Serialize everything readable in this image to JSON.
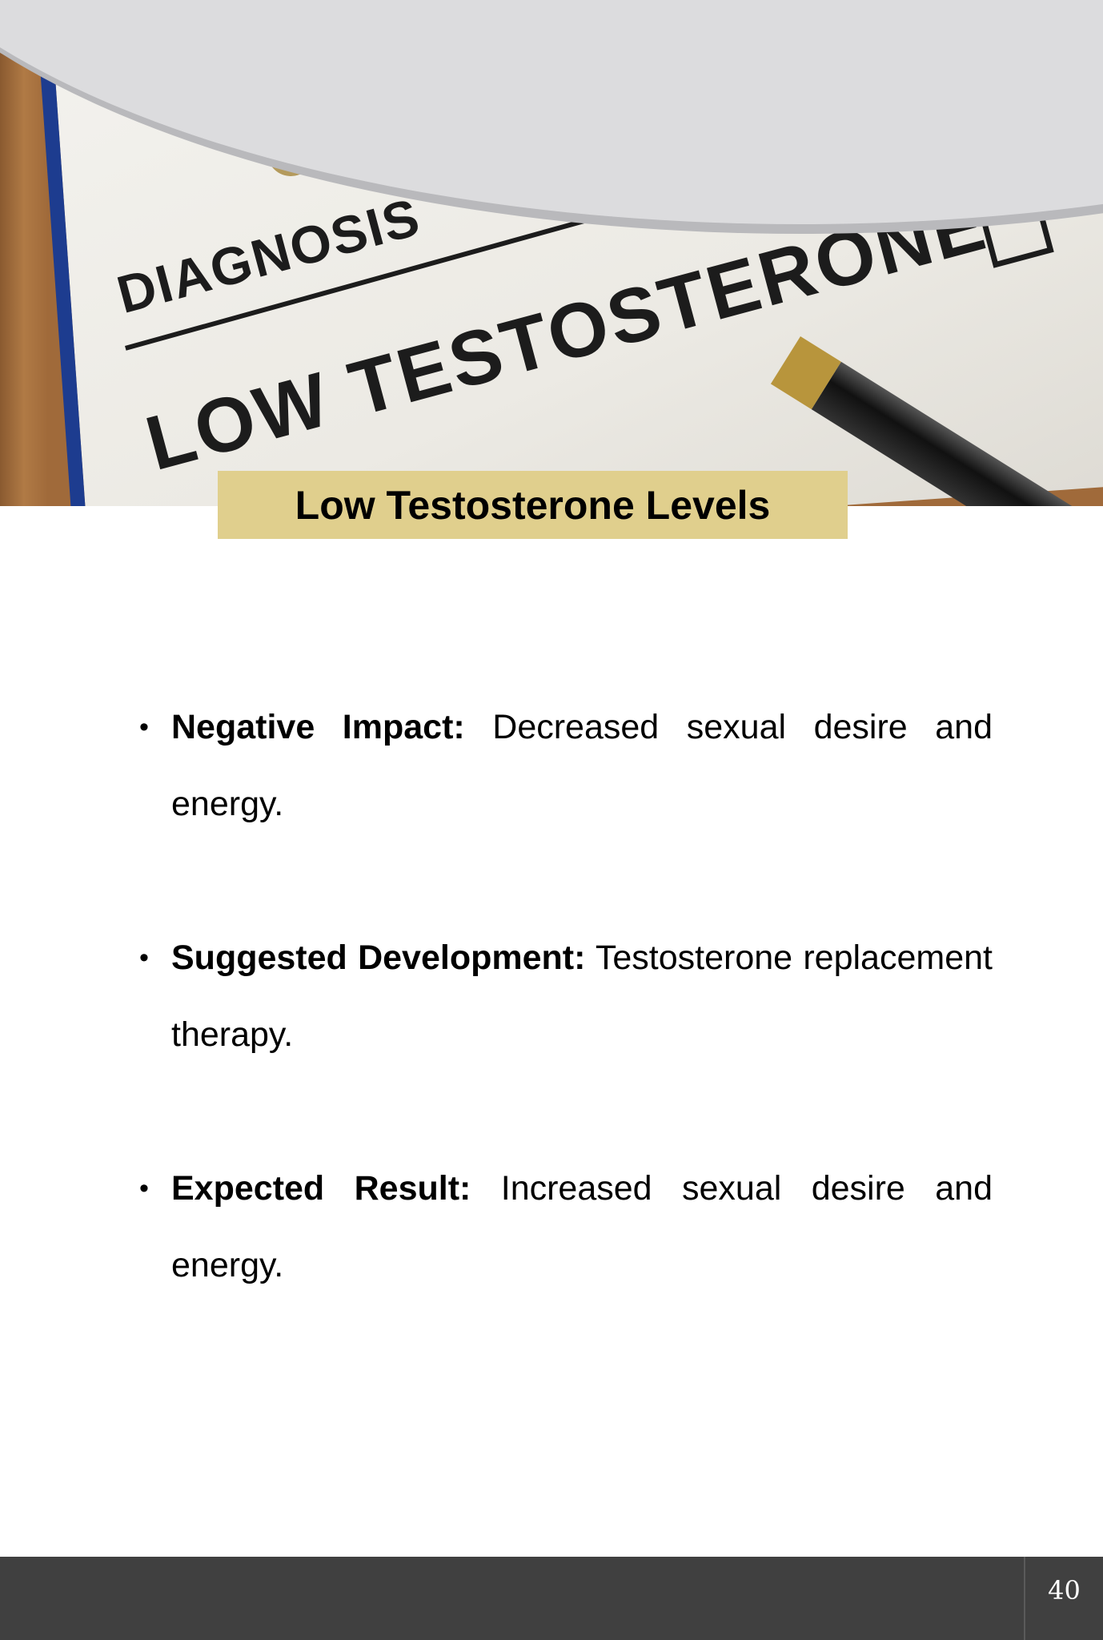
{
  "hero_photo": {
    "alt_lettering": [
      "DIAGNOSIS",
      "LOW TESTOSTERONE"
    ],
    "colors": {
      "curve": "#dcdcde",
      "clipboard_edge": "#1d3c8f"
    }
  },
  "title": "Low Testosterone Levels",
  "title_bg": "#e0cf8d",
  "bullets": [
    {
      "label": "Negative Impact:",
      "text": " Decreased sexual desire and energy."
    },
    {
      "label": "Suggested Development:",
      "text": " Testosterone replacement therapy."
    },
    {
      "label": "Expected Result:",
      "text": " Increased sexual desire and energy."
    }
  ],
  "footer": {
    "page_number": "40",
    "bg": "#404040"
  }
}
